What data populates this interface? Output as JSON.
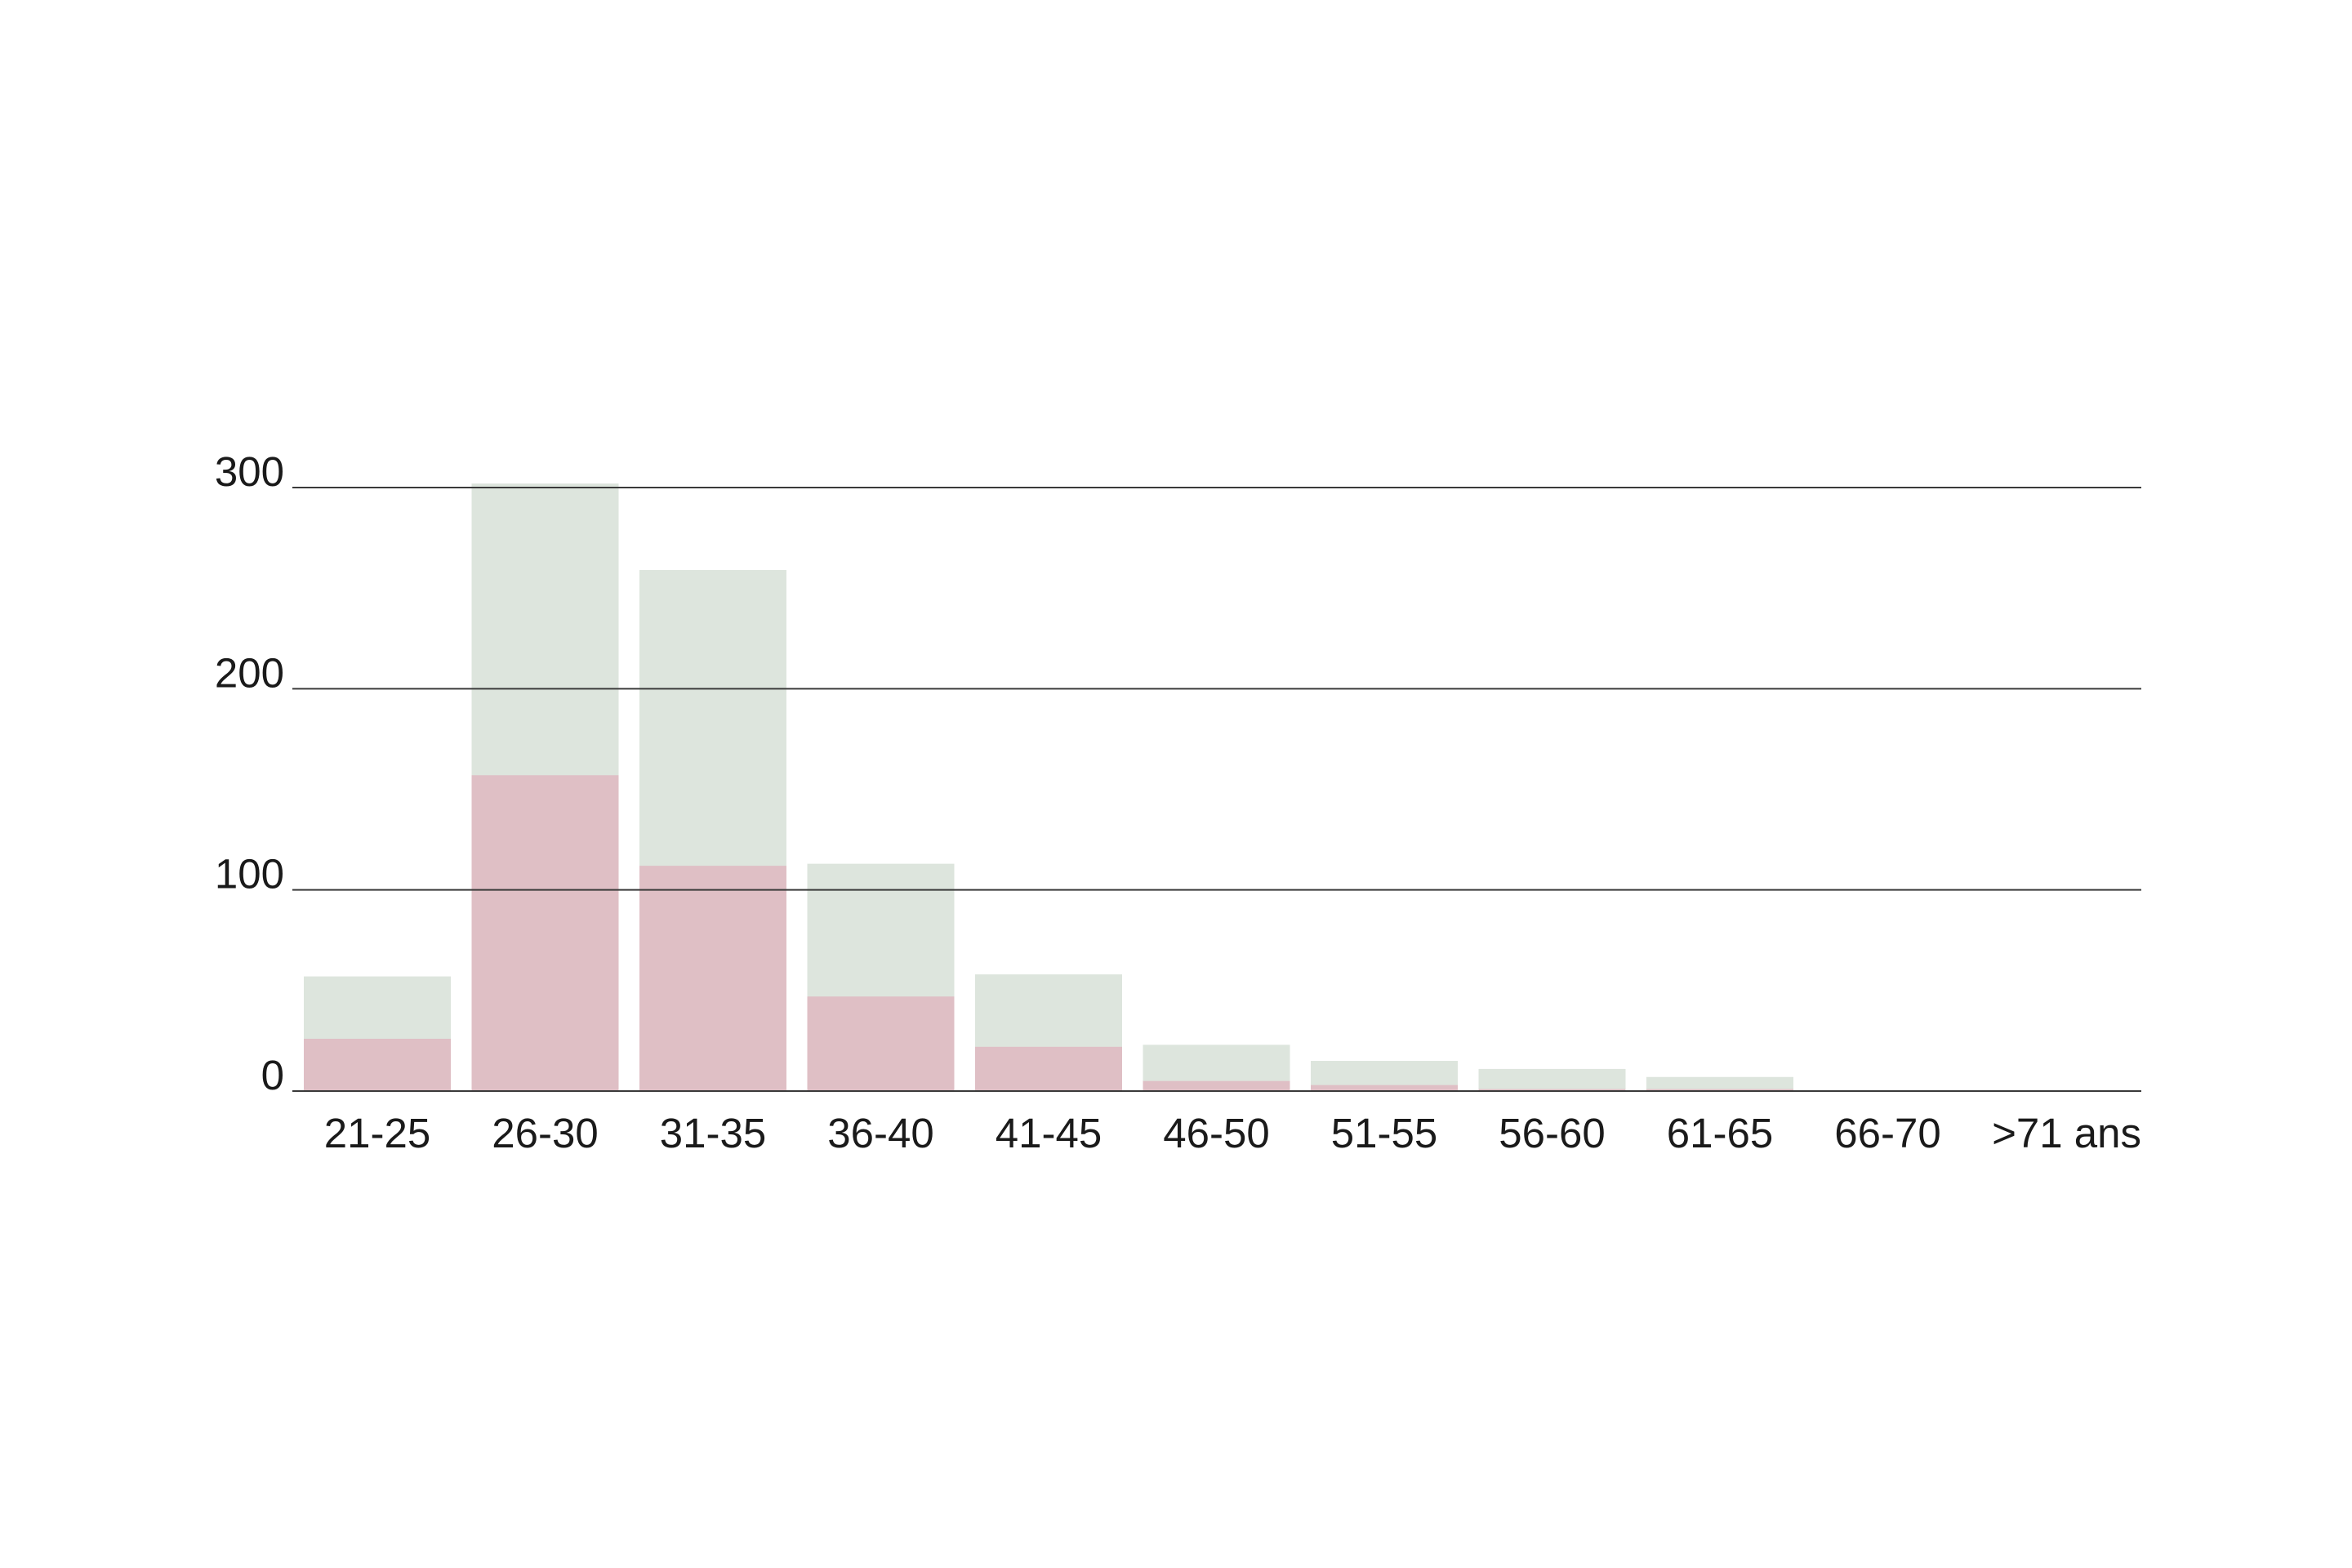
{
  "chart_data": {
    "type": "bar",
    "stacked": "overlay",
    "categories": [
      "21-25",
      "26-30",
      "31-35",
      "36-40",
      "41-45",
      "46-50",
      "51-55",
      "56-60",
      "61-65",
      "66-70",
      ">71 ans"
    ],
    "series": [
      {
        "values": [
          57,
          302,
          259,
          113,
          58,
          23,
          15,
          11,
          7,
          0,
          0
        ],
        "color": "#dde5dd"
      },
      {
        "values": [
          26,
          157,
          112,
          47,
          22,
          5,
          3,
          1,
          1,
          0,
          0
        ],
        "color": "#dfbfc5"
      }
    ],
    "yticks": [
      0,
      100,
      200,
      300
    ],
    "ylim": [
      0,
      300
    ],
    "grid": true,
    "title": "",
    "xlabel": "",
    "ylabel": ""
  }
}
